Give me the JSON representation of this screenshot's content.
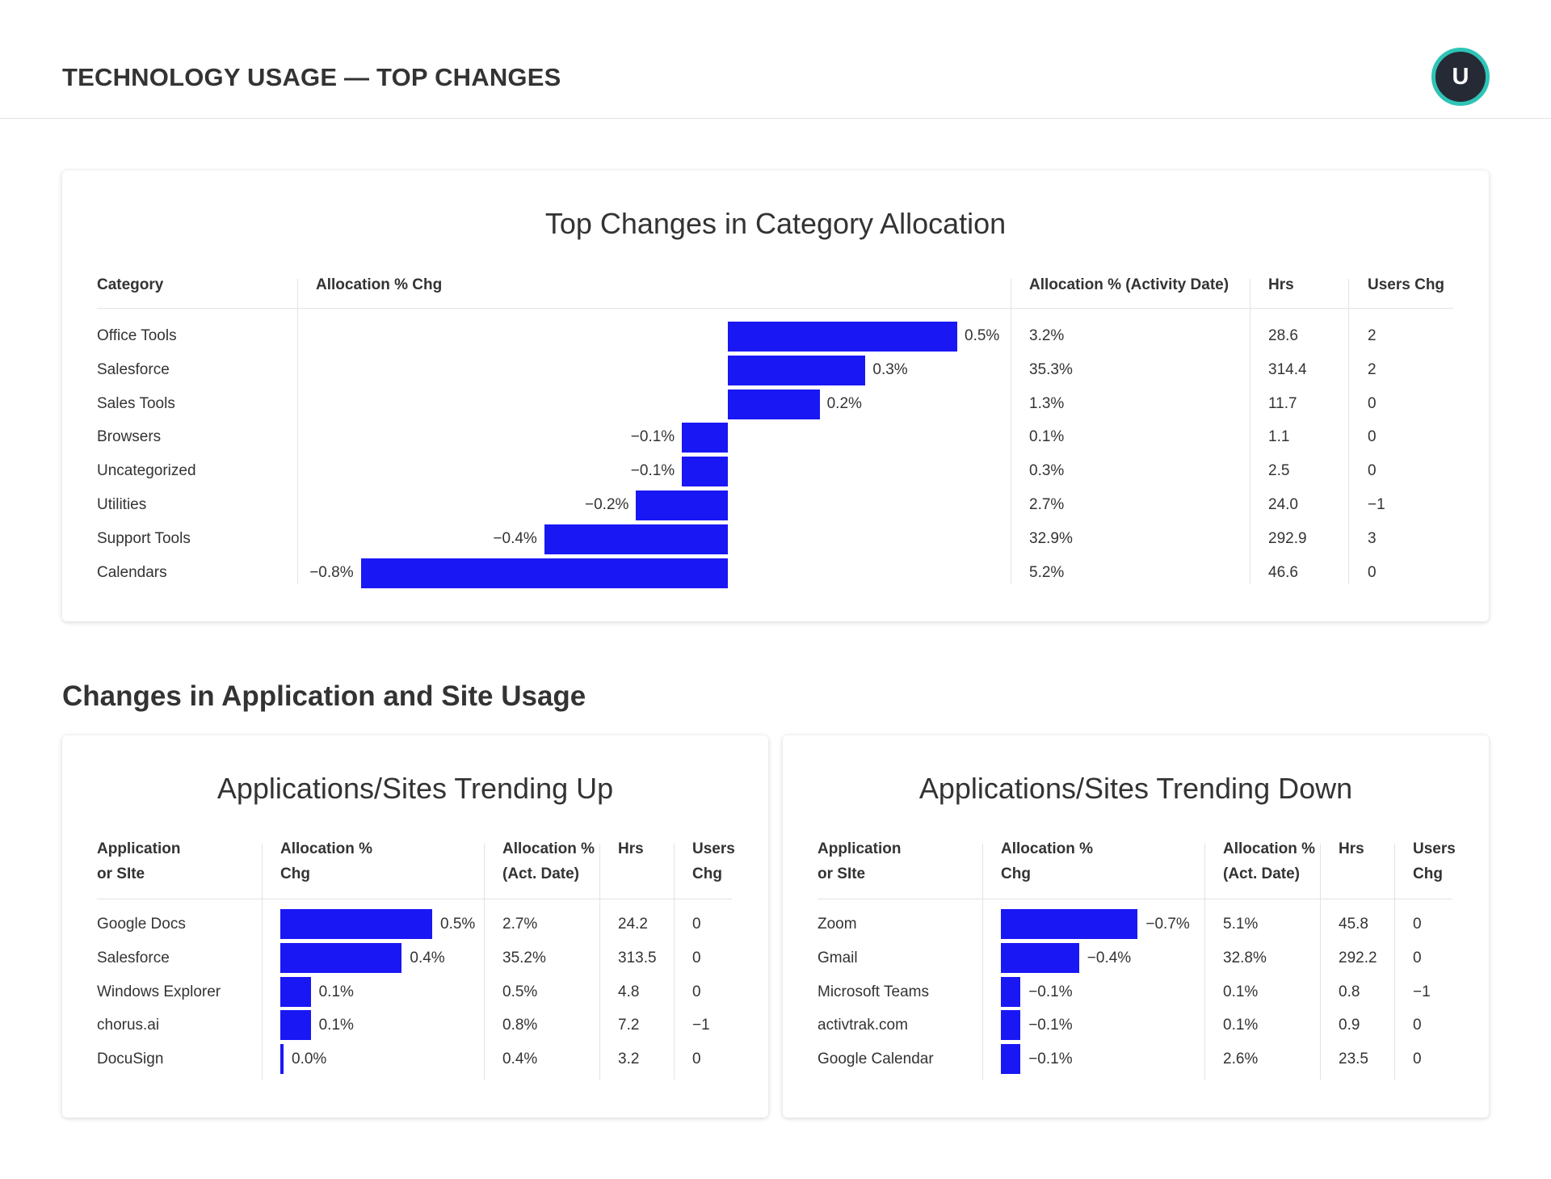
{
  "header": {
    "title": "TECHNOLOGY USAGE — TOP CHANGES",
    "avatar_initial": "U"
  },
  "category_card": {
    "title": "Top Changes in Category Allocation",
    "columns": [
      "Category",
      "Allocation % Chg",
      "Allocation % (Activity Date)",
      "Hrs",
      "Users Chg"
    ],
    "rows": [
      {
        "name": "Office Tools",
        "chg": 0.5,
        "chg_label": "0.5%",
        "alloc": "3.2%",
        "hrs": "28.6",
        "users": "2"
      },
      {
        "name": "Salesforce",
        "chg": 0.3,
        "chg_label": "0.3%",
        "alloc": "35.3%",
        "hrs": "314.4",
        "users": "2"
      },
      {
        "name": "Sales Tools",
        "chg": 0.2,
        "chg_label": "0.2%",
        "alloc": "1.3%",
        "hrs": "11.7",
        "users": "0"
      },
      {
        "name": "Browsers",
        "chg": -0.1,
        "chg_label": "−0.1%",
        "alloc": "0.1%",
        "hrs": "1.1",
        "users": "0"
      },
      {
        "name": "Uncategorized",
        "chg": -0.1,
        "chg_label": "−0.1%",
        "alloc": "0.3%",
        "hrs": "2.5",
        "users": "0"
      },
      {
        "name": "Utilities",
        "chg": -0.2,
        "chg_label": "−0.2%",
        "alloc": "2.7%",
        "hrs": "24.0",
        "users": "−1"
      },
      {
        "name": "Support Tools",
        "chg": -0.4,
        "chg_label": "−0.4%",
        "alloc": "32.9%",
        "hrs": "292.9",
        "users": "3"
      },
      {
        "name": "Calendars",
        "chg": -0.8,
        "chg_label": "−0.8%",
        "alloc": "5.2%",
        "hrs": "46.6",
        "users": "0"
      }
    ]
  },
  "section_title": "Changes in Application and Site Usage",
  "up_card": {
    "title": "Applications/Sites Trending Up",
    "columns": [
      [
        "Application",
        "or SIte"
      ],
      [
        "Allocation %",
        "Chg"
      ],
      [
        "Allocation %",
        "(Act. Date)"
      ],
      [
        "Hrs",
        ""
      ],
      [
        "Users",
        "Chg"
      ]
    ],
    "rows": [
      {
        "name": "Google Docs",
        "chg": 0.5,
        "chg_label": "0.5%",
        "alloc": "2.7%",
        "hrs": "24.2",
        "users": "0"
      },
      {
        "name": "Salesforce",
        "chg": 0.4,
        "chg_label": "0.4%",
        "alloc": "35.2%",
        "hrs": "313.5",
        "users": "0"
      },
      {
        "name": "Windows Explorer",
        "chg": 0.1,
        "chg_label": "0.1%",
        "alloc": "0.5%",
        "hrs": "4.8",
        "users": "0"
      },
      {
        "name": "chorus.ai",
        "chg": 0.1,
        "chg_label": "0.1%",
        "alloc": "0.8%",
        "hrs": "7.2",
        "users": "−1"
      },
      {
        "name": "DocuSign",
        "chg": 0.0,
        "chg_label": "0.0%",
        "alloc": "0.4%",
        "hrs": "3.2",
        "users": "0"
      }
    ]
  },
  "down_card": {
    "title": "Applications/Sites Trending Down",
    "columns": [
      [
        "Application",
        "or SIte"
      ],
      [
        "Allocation %",
        "Chg"
      ],
      [
        "Allocation %",
        "(Act. Date)"
      ],
      [
        "Hrs",
        ""
      ],
      [
        "Users",
        "Chg"
      ]
    ],
    "rows": [
      {
        "name": "Zoom",
        "chg": -0.7,
        "chg_label": "−0.7%",
        "alloc": "5.1%",
        "hrs": "45.8",
        "users": "0"
      },
      {
        "name": "Gmail",
        "chg": -0.4,
        "chg_label": "−0.4%",
        "alloc": "32.8%",
        "hrs": "292.2",
        "users": "0"
      },
      {
        "name": "Microsoft Teams",
        "chg": -0.1,
        "chg_label": "−0.1%",
        "alloc": "0.1%",
        "hrs": "0.8",
        "users": "−1"
      },
      {
        "name": "activtrak.com",
        "chg": -0.1,
        "chg_label": "−0.1%",
        "alloc": "0.1%",
        "hrs": "0.9",
        "users": "0"
      },
      {
        "name": "Google Calendar",
        "chg": -0.1,
        "chg_label": "−0.1%",
        "alloc": "2.6%",
        "hrs": "23.5",
        "users": "0"
      }
    ]
  },
  "colors": {
    "bar": "#1a17f5",
    "avatar_ring": "#2ec4b6",
    "avatar_bg": "#262a35"
  }
}
